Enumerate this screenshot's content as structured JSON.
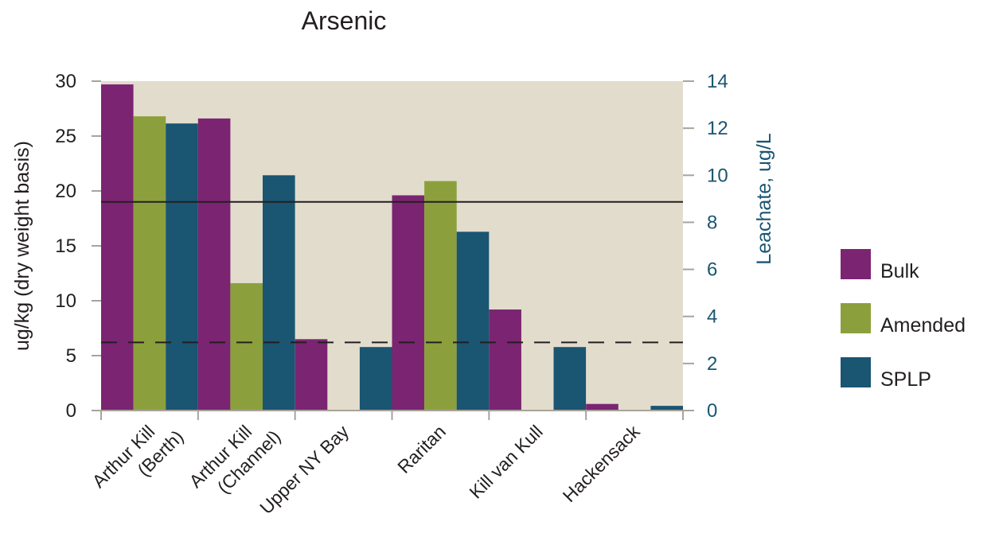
{
  "chart_data": {
    "type": "bar",
    "title": "Arsenic",
    "ylabel": "ug/kg (dry weight basis)",
    "y2label": "Leachate, ug/L",
    "ylim": [
      0,
      30
    ],
    "y2lim": [
      0,
      14
    ],
    "yticks": [
      0,
      5,
      10,
      15,
      20,
      25,
      30
    ],
    "y2ticks": [
      0,
      2,
      4,
      6,
      8,
      10,
      12,
      14
    ],
    "grid": false,
    "legend_position": "right",
    "categories": [
      [
        "Arthur Kill",
        "(Berth)"
      ],
      [
        "Arthur Kill",
        "(Channel)"
      ],
      [
        "Upper NY Bay"
      ],
      [
        "Raritan"
      ],
      [
        "Kill van Kull"
      ],
      [
        "Hackensack"
      ]
    ],
    "series": [
      {
        "name": "Bulk",
        "axis": "left",
        "color": "#7b2572",
        "values": [
          29.7,
          26.6,
          6.5,
          19.6,
          9.2,
          0.6
        ]
      },
      {
        "name": "Amended",
        "axis": "left",
        "color": "#8ba03c",
        "values": [
          26.8,
          11.6,
          0,
          20.9,
          0,
          0
        ]
      },
      {
        "name": "SPLP",
        "axis": "right",
        "color": "#1a5572",
        "values": [
          12.2,
          10.0,
          2.7,
          7.6,
          2.7,
          0.2
        ]
      }
    ],
    "reference_lines": [
      {
        "style": "solid",
        "y": 19,
        "axis": "left"
      },
      {
        "style": "dashed",
        "y": 6.2,
        "axis": "left"
      }
    ],
    "plot_background": "#e2dccd"
  }
}
